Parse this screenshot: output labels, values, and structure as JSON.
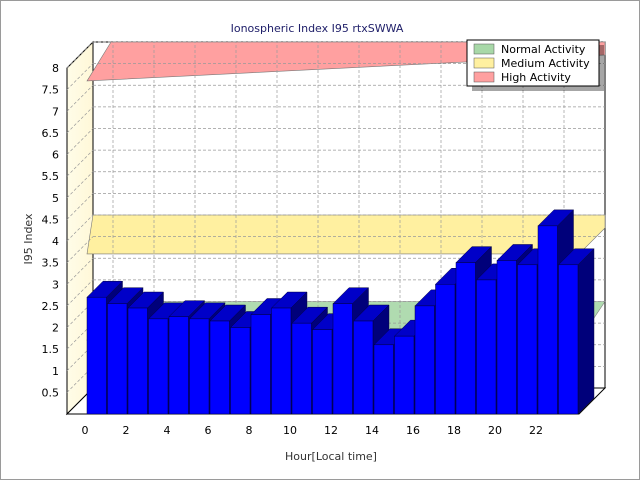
{
  "chart_data": {
    "type": "bar",
    "title": "Ionospheric Index I95 rtxSWWA",
    "xlabel": "Hour[Local time]",
    "ylabel": "I95 Index",
    "ylim": [
      0,
      8
    ],
    "yticks": [
      "0.5",
      "1",
      "1.5",
      "2",
      "2.5",
      "3",
      "3.5",
      "4",
      "4.5",
      "5",
      "5.5",
      "6",
      "6.5",
      "7",
      "7.5",
      "8"
    ],
    "xticks": [
      "0",
      "2",
      "4",
      "6",
      "8",
      "10",
      "12",
      "14",
      "16",
      "18",
      "20",
      "22"
    ],
    "x": [
      0,
      1,
      2,
      3,
      4,
      5,
      6,
      7,
      8,
      9,
      10,
      11,
      12,
      13,
      14,
      15,
      16,
      17,
      18,
      19,
      20,
      21,
      22,
      23
    ],
    "values": [
      2.7,
      2.55,
      2.45,
      2.2,
      2.25,
      2.2,
      2.15,
      2.0,
      2.3,
      2.45,
      2.1,
      1.95,
      2.55,
      2.15,
      1.6,
      1.8,
      2.5,
      3.0,
      3.5,
      3.1,
      3.55,
      3.45,
      4.35,
      3.45
    ],
    "bar_color": "#0000ff",
    "bands": [
      {
        "name": "Normal Activity",
        "from": 0,
        "to": 2,
        "color": "#a8d8a8"
      },
      {
        "name": "Medium Activity",
        "from": 2,
        "to": 4,
        "color": "#fff0a0"
      },
      {
        "name": "High Activity",
        "from": 4,
        "to": 8,
        "color": "#ffa0a0"
      }
    ],
    "grid": true,
    "legend_position": "top-right"
  }
}
